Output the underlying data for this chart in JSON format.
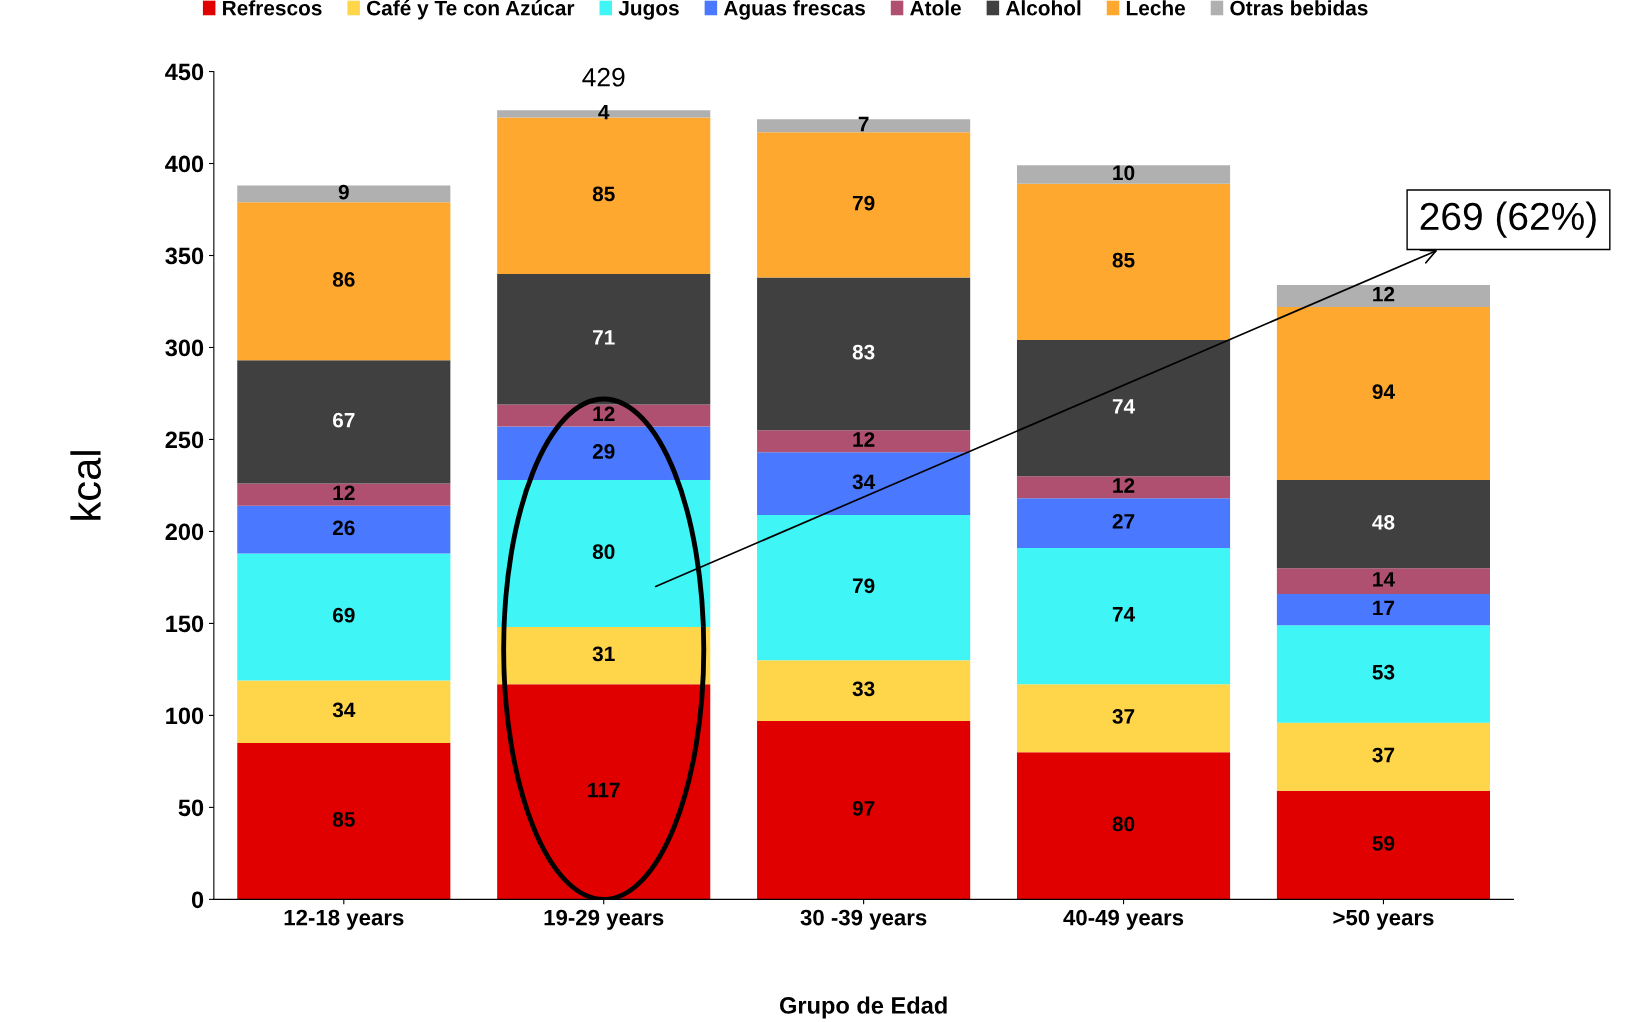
{
  "chart_data": {
    "type": "bar",
    "stacked": true,
    "xlabel": "Grupo de Edad",
    "ylabel": "kcal",
    "categories": [
      "12-18 years",
      "19-29 years",
      "30 -39 years",
      "40-49 years",
      ">50 years"
    ],
    "series": [
      {
        "name": "Refrescos",
        "color": "#e00000",
        "values": [
          85,
          117,
          97,
          80,
          59
        ]
      },
      {
        "name": "Café y Te con Azúcar",
        "color": "#ffd54a",
        "values": [
          34,
          31,
          33,
          37,
          37
        ]
      },
      {
        "name": "Jugos",
        "color": "#40f5f5",
        "values": [
          69,
          80,
          79,
          74,
          53
        ]
      },
      {
        "name": "Aguas frescas",
        "color": "#4a78ff",
        "values": [
          26,
          29,
          34,
          27,
          17
        ]
      },
      {
        "name": "Atole",
        "color": "#b05070",
        "values": [
          12,
          12,
          12,
          12,
          14
        ]
      },
      {
        "name": "Alcohol",
        "color": "#404040",
        "values": [
          67,
          71,
          83,
          74,
          48
        ]
      },
      {
        "name": "Leche",
        "color": "#ffa830",
        "values": [
          86,
          85,
          79,
          85,
          94
        ]
      },
      {
        "name": "Otras bebidas",
        "color": "#b0b0b0",
        "values": [
          9,
          4,
          7,
          10,
          12
        ]
      }
    ],
    "totals": [
      null,
      "429",
      null,
      null,
      null
    ],
    "ylim": [
      0,
      450
    ],
    "yticks": [
      0,
      50,
      100,
      150,
      200,
      250,
      300,
      350,
      400,
      450
    ],
    "data_labels": true,
    "grid": false,
    "legend": "top",
    "annotations": [
      "269 (62%)"
    ]
  }
}
